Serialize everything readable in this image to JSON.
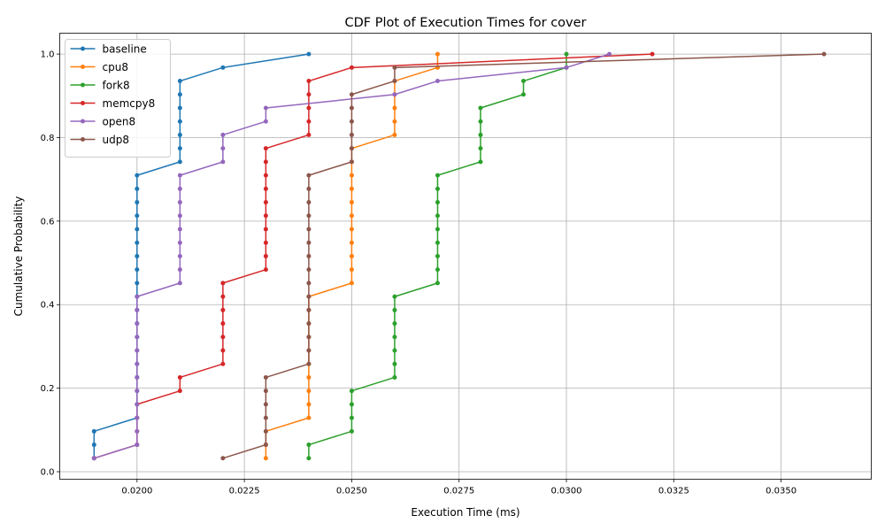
{
  "chart_data": {
    "type": "line",
    "title": "CDF Plot of Execution Times for cover",
    "xlabel": "Execution Time (ms)",
    "ylabel": "Cumulative Probability",
    "xlim": [
      0.0182,
      0.0371
    ],
    "ylim": [
      -0.018,
      1.05
    ],
    "xticks": [
      0.02,
      0.0225,
      0.025,
      0.0275,
      0.03,
      0.0325,
      0.035
    ],
    "xtick_labels": [
      "0.0200",
      "0.0225",
      "0.0250",
      "0.0275",
      "0.0300",
      "0.0325",
      "0.0350"
    ],
    "yticks": [
      0.0,
      0.2,
      0.4,
      0.6,
      0.8,
      1.0
    ],
    "ytick_labels": [
      "0.0",
      "0.2",
      "0.4",
      "0.6",
      "0.8",
      "1.0"
    ],
    "grid": true,
    "legend_position": "top-left",
    "n_points": 31,
    "series": [
      {
        "name": "baseline",
        "color": "#1f77b4",
        "x": [
          0.019,
          0.019,
          0.019,
          0.02,
          0.02,
          0.02,
          0.02,
          0.02,
          0.02,
          0.02,
          0.02,
          0.02,
          0.02,
          0.02,
          0.02,
          0.02,
          0.02,
          0.02,
          0.02,
          0.02,
          0.02,
          0.02,
          0.021,
          0.021,
          0.021,
          0.021,
          0.021,
          0.021,
          0.021,
          0.022,
          0.024
        ]
      },
      {
        "name": "cpu8",
        "color": "#ff7f0e",
        "x": [
          0.023,
          0.023,
          0.023,
          0.024,
          0.024,
          0.024,
          0.024,
          0.024,
          0.024,
          0.024,
          0.024,
          0.024,
          0.024,
          0.025,
          0.025,
          0.025,
          0.025,
          0.025,
          0.025,
          0.025,
          0.025,
          0.025,
          0.025,
          0.025,
          0.026,
          0.026,
          0.026,
          0.026,
          0.026,
          0.027,
          0.027
        ]
      },
      {
        "name": "fork8",
        "color": "#2ca02c",
        "x": [
          0.024,
          0.024,
          0.025,
          0.025,
          0.025,
          0.025,
          0.026,
          0.026,
          0.026,
          0.026,
          0.026,
          0.026,
          0.026,
          0.027,
          0.027,
          0.027,
          0.027,
          0.027,
          0.027,
          0.027,
          0.027,
          0.027,
          0.028,
          0.028,
          0.028,
          0.028,
          0.028,
          0.029,
          0.029,
          0.03,
          0.03
        ]
      },
      {
        "name": "memcpy8",
        "color": "#d62728",
        "x": [
          0.019,
          0.02,
          0.02,
          0.02,
          0.02,
          0.021,
          0.021,
          0.022,
          0.022,
          0.022,
          0.022,
          0.022,
          0.022,
          0.022,
          0.023,
          0.023,
          0.023,
          0.023,
          0.023,
          0.023,
          0.023,
          0.023,
          0.023,
          0.023,
          0.024,
          0.024,
          0.024,
          0.024,
          0.024,
          0.025,
          0.032
        ]
      },
      {
        "name": "open8",
        "color": "#9467bd",
        "x": [
          0.019,
          0.02,
          0.02,
          0.02,
          0.02,
          0.02,
          0.02,
          0.02,
          0.02,
          0.02,
          0.02,
          0.02,
          0.02,
          0.021,
          0.021,
          0.021,
          0.021,
          0.021,
          0.021,
          0.021,
          0.021,
          0.021,
          0.022,
          0.022,
          0.022,
          0.023,
          0.023,
          0.026,
          0.027,
          0.03,
          0.031
        ]
      },
      {
        "name": "udp8",
        "color": "#8c564b",
        "x": [
          0.022,
          0.023,
          0.023,
          0.023,
          0.023,
          0.023,
          0.023,
          0.024,
          0.024,
          0.024,
          0.024,
          0.024,
          0.024,
          0.024,
          0.024,
          0.024,
          0.024,
          0.024,
          0.024,
          0.024,
          0.024,
          0.024,
          0.025,
          0.025,
          0.025,
          0.025,
          0.025,
          0.025,
          0.026,
          0.026,
          0.036
        ]
      }
    ]
  }
}
